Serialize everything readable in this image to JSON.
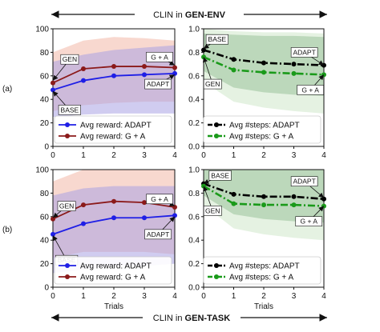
{
  "banners": {
    "top": [
      "CLIN in ",
      "GEN-ENV"
    ],
    "bottom": [
      "CLIN in ",
      "GEN-TASK"
    ]
  },
  "row_labels": [
    "(a)",
    "(b)"
  ],
  "colors": {
    "adapt_reward": "#1f1fe6",
    "ga_reward": "#8b1a1a",
    "adapt_steps": "#000000",
    "ga_steps": "#1a9a1a",
    "band_blue": "#a9a2e4",
    "band_red": "#f2b8a8",
    "band_darkgreen": "#9bc29b",
    "band_lightgreen": "#cfe7cb"
  },
  "chart_data": [
    {
      "panel": "top-left",
      "type": "line",
      "x": [
        0,
        1,
        2,
        3,
        4
      ],
      "xlim": [
        0,
        4
      ],
      "ylim": [
        0,
        100
      ],
      "xticks": [
        "0",
        "1",
        "2",
        "3",
        "4"
      ],
      "yticks": [
        "0",
        "20",
        "40",
        "60",
        "80",
        "100"
      ],
      "xlabel": "",
      "ylabel": "",
      "series": [
        {
          "name": "Avg reward: ADAPT",
          "values": [
            48,
            56,
            60,
            61,
            62
          ],
          "style": "solid",
          "key": "adapt_reward"
        },
        {
          "name": "Avg reward: G + A",
          "values": [
            54,
            66,
            68,
            68,
            67
          ],
          "style": "solid",
          "key": "ga_reward"
        }
      ],
      "bands": [
        {
          "key": "band_red",
          "upper": [
            80,
            90,
            93,
            92,
            90
          ],
          "lower": [
            30,
            35,
            37,
            38,
            38
          ]
        },
        {
          "key": "band_blue",
          "upper": [
            72,
            78,
            82,
            84,
            86
          ],
          "lower": [
            25,
            27,
            28,
            28,
            28
          ]
        }
      ],
      "annotations": [
        {
          "text": "GEN",
          "x": 0.55,
          "y": 74,
          "tx": 0,
          "ty": 56
        },
        {
          "text": "BASE",
          "x": 0.55,
          "y": 31,
          "tx": 0,
          "ty": 47
        },
        {
          "text": "G + A",
          "x": 3.5,
          "y": 76,
          "tx": 4,
          "ty": 69
        },
        {
          "text": "ADAPT",
          "x": 3.45,
          "y": 53,
          "tx": 4,
          "ty": 61
        }
      ],
      "legend": [
        "Avg reward: ADAPT",
        "Avg reward: G + A"
      ],
      "legend_loc": "bottom-right"
    },
    {
      "panel": "top-right",
      "type": "line",
      "x": [
        0,
        1,
        2,
        3,
        4
      ],
      "xlim": [
        0,
        4
      ],
      "ylim": [
        0,
        1.0
      ],
      "xticks": [
        "0",
        "1",
        "2",
        "3",
        "4"
      ],
      "yticks": [
        "0.0",
        "0.2",
        "0.4",
        "0.6",
        "0.8",
        "1.0"
      ],
      "xlabel": "",
      "ylabel": "",
      "series": [
        {
          "name": "Avg #steps: ADAPT",
          "values": [
            0.82,
            0.74,
            0.71,
            0.7,
            0.69
          ],
          "style": "dashdot",
          "key": "adapt_steps"
        },
        {
          "name": "Avg #steps: G + A",
          "values": [
            0.76,
            0.65,
            0.63,
            0.62,
            0.61
          ],
          "style": "dashdot",
          "key": "ga_steps"
        }
      ],
      "bands": [
        {
          "key": "band_lightgreen",
          "upper": [
            1.0,
            0.98,
            0.97,
            0.97,
            0.96
          ],
          "lower": [
            0.55,
            0.38,
            0.33,
            0.3,
            0.28
          ]
        },
        {
          "key": "band_darkgreen",
          "upper": [
            0.96,
            0.95,
            0.94,
            0.94,
            0.93
          ],
          "lower": [
            0.64,
            0.5,
            0.46,
            0.44,
            0.43
          ]
        }
      ],
      "annotations": [
        {
          "text": "BASE",
          "x": 0.45,
          "y": 0.91,
          "tx": 0,
          "ty": 0.83
        },
        {
          "text": "GEN",
          "x": 0.3,
          "y": 0.53,
          "tx": 0,
          "ty": 0.76
        },
        {
          "text": "ADAPT",
          "x": 3.35,
          "y": 0.8,
          "tx": 4,
          "ty": 0.69
        },
        {
          "text": "G + A",
          "x": 3.55,
          "y": 0.48,
          "tx": 4,
          "ty": 0.61
        }
      ],
      "legend": [
        "Avg #steps: ADAPT",
        "Avg #steps: G + A"
      ],
      "legend_loc": "bottom-right"
    },
    {
      "panel": "bottom-left",
      "type": "line",
      "x": [
        0,
        1,
        2,
        3,
        4
      ],
      "xlim": [
        0,
        4
      ],
      "ylim": [
        0,
        100
      ],
      "xticks": [
        "0",
        "1",
        "2",
        "3",
        "4"
      ],
      "yticks": [
        "0",
        "20",
        "40",
        "60",
        "80",
        "100"
      ],
      "xlabel": "Trials",
      "ylabel": "",
      "series": [
        {
          "name": "Avg reward: ADAPT",
          "values": [
            45,
            54,
            59,
            59,
            61
          ],
          "style": "solid",
          "key": "adapt_reward"
        },
        {
          "name": "Avg reward: G + A",
          "values": [
            58,
            70,
            73,
            72,
            68
          ],
          "style": "solid",
          "key": "ga_reward"
        }
      ],
      "bands": [
        {
          "key": "band_red",
          "upper": [
            90,
            100,
            100,
            100,
            100
          ],
          "lower": [
            25,
            30,
            30,
            30,
            28
          ]
        },
        {
          "key": "band_blue",
          "upper": [
            78,
            84,
            86,
            86,
            86
          ],
          "lower": [
            12,
            15,
            18,
            18,
            20
          ]
        }
      ],
      "annotations": [
        {
          "text": "GEN",
          "x": 0.45,
          "y": 69,
          "tx": 0,
          "ty": 59
        },
        {
          "text": "BASE",
          "x": 0.45,
          "y": 23,
          "tx": 0,
          "ty": 44
        },
        {
          "text": "G + A",
          "x": 3.5,
          "y": 75,
          "tx": 4,
          "ty": 69
        },
        {
          "text": "ADAPT",
          "x": 3.45,
          "y": 45,
          "tx": 4,
          "ty": 60
        }
      ],
      "legend": [
        "Avg reward: ADAPT",
        "Avg reward: G + A"
      ],
      "legend_loc": "bottom-right"
    },
    {
      "panel": "bottom-right",
      "type": "line",
      "x": [
        0,
        1,
        2,
        3,
        4
      ],
      "xlim": [
        0,
        4
      ],
      "ylim": [
        0,
        1.0
      ],
      "xticks": [
        "0",
        "1",
        "2",
        "3",
        "4"
      ],
      "yticks": [
        "0.0",
        "0.2",
        "0.4",
        "0.6",
        "0.8",
        "1.0"
      ],
      "xlabel": "Trials",
      "ylabel": "",
      "series": [
        {
          "name": "Avg #steps: ADAPT",
          "values": [
            0.88,
            0.79,
            0.77,
            0.77,
            0.75
          ],
          "style": "dashdot",
          "key": "adapt_steps"
        },
        {
          "name": "Avg #steps: G + A",
          "values": [
            0.86,
            0.71,
            0.7,
            0.7,
            0.69
          ],
          "style": "dashdot",
          "key": "ga_steps"
        }
      ],
      "bands": [
        {
          "key": "band_lightgreen",
          "upper": [
            1.0,
            1.0,
            1.0,
            1.0,
            1.0
          ],
          "lower": [
            0.7,
            0.5,
            0.45,
            0.42,
            0.4
          ]
        },
        {
          "key": "band_darkgreen",
          "upper": [
            1.0,
            1.0,
            1.0,
            1.0,
            1.0
          ],
          "lower": [
            0.78,
            0.62,
            0.58,
            0.56,
            0.55
          ]
        }
      ],
      "annotations": [
        {
          "text": "BASE",
          "x": 0.55,
          "y": 0.95,
          "tx": 0,
          "ty": 0.88
        },
        {
          "text": "GEN",
          "x": 0.3,
          "y": 0.65,
          "tx": 0,
          "ty": 0.86
        },
        {
          "text": "ADAPT",
          "x": 3.35,
          "y": 0.9,
          "tx": 4,
          "ty": 0.76
        },
        {
          "text": "G + A",
          "x": 3.5,
          "y": 0.56,
          "tx": 4,
          "ty": 0.69
        }
      ],
      "legend": [
        "Avg #steps: ADAPT",
        "Avg #steps: G + A"
      ],
      "legend_loc": "bottom-right"
    }
  ]
}
